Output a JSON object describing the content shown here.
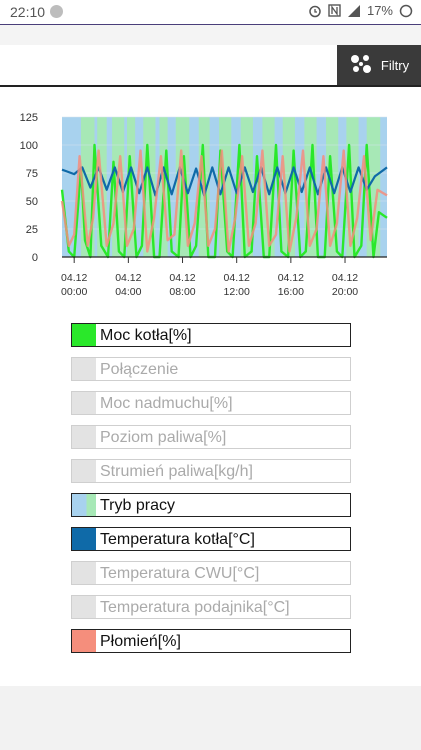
{
  "status": {
    "time": "22:10",
    "battery": "17%"
  },
  "header": {
    "filter_label": "Filtry"
  },
  "chart_data": {
    "type": "line",
    "yticks": [
      "0",
      "25",
      "50",
      "75",
      "100",
      "125"
    ],
    "ylim": [
      0,
      125
    ],
    "xticks": [
      {
        "date": "04.12",
        "time": "00:00"
      },
      {
        "date": "04.12",
        "time": "04:00"
      },
      {
        "date": "04.12",
        "time": "08:00"
      },
      {
        "date": "04.12",
        "time": "12:00"
      },
      {
        "date": "04.12",
        "time": "16:00"
      },
      {
        "date": "04.12",
        "time": "20:00"
      }
    ],
    "xlim_hours": [
      -0.9,
      23.1
    ],
    "mode_bands_hours": [
      [
        0.5,
        1.5
      ],
      [
        1.7,
        2.4
      ],
      [
        2.8,
        3.7
      ],
      [
        3.9,
        4.5
      ],
      [
        5.1,
        6.0
      ],
      [
        6.3,
        6.9
      ],
      [
        7.5,
        8.5
      ],
      [
        9.2,
        10.0
      ],
      [
        10.7,
        11.6
      ],
      [
        12.3,
        13.2
      ],
      [
        13.9,
        14.8
      ],
      [
        15.4,
        16.3
      ],
      [
        17.0,
        17.9
      ],
      [
        18.6,
        19.5
      ],
      [
        20.1,
        21.0
      ],
      [
        21.6,
        22.6
      ]
    ],
    "series": [
      {
        "name": "Moc kotła[%]",
        "color": "#2ae82a",
        "x": [
          -0.9,
          -0.4,
          0.0,
          0.5,
          0.8,
          1.2,
          1.5,
          2.0,
          2.5,
          2.9,
          3.3,
          3.7,
          4.1,
          4.6,
          5.0,
          5.4,
          5.9,
          6.3,
          6.8,
          7.2,
          7.7,
          8.1,
          8.6,
          9.0,
          9.5,
          9.9,
          10.4,
          10.8,
          11.3,
          11.7,
          12.2,
          12.6,
          13.1,
          13.5,
          14.0,
          14.4,
          14.9,
          15.3,
          15.8,
          16.2,
          16.7,
          17.1,
          17.6,
          18.0,
          18.5,
          18.9,
          19.4,
          19.8,
          20.3,
          20.7,
          21.2,
          21.6,
          22.1,
          22.5,
          23.1
        ],
        "y": [
          60,
          5,
          0,
          80,
          15,
          0,
          100,
          10,
          0,
          85,
          5,
          0,
          90,
          0,
          10,
          100,
          0,
          0,
          95,
          5,
          0,
          90,
          0,
          10,
          100,
          0,
          0,
          95,
          5,
          0,
          100,
          0,
          5,
          90,
          0,
          0,
          100,
          5,
          0,
          95,
          0,
          5,
          100,
          0,
          0,
          90,
          5,
          0,
          100,
          0,
          10,
          100,
          0,
          40,
          35
        ]
      },
      {
        "name": "Temperatura kotła[°C]",
        "color": "#0f6aa8",
        "x": [
          -0.9,
          0.0,
          0.6,
          1.2,
          1.8,
          2.4,
          3.0,
          3.6,
          4.2,
          4.8,
          5.4,
          6.0,
          6.6,
          7.2,
          7.8,
          8.4,
          9.0,
          9.6,
          10.2,
          10.8,
          11.4,
          12.0,
          12.6,
          13.2,
          13.8,
          14.4,
          15.0,
          15.6,
          16.2,
          16.8,
          17.4,
          18.0,
          18.6,
          19.2,
          19.8,
          20.4,
          21.0,
          21.6,
          22.2,
          23.1
        ],
        "y": [
          78,
          74,
          80,
          62,
          80,
          60,
          80,
          58,
          80,
          57,
          80,
          55,
          80,
          56,
          80,
          57,
          79,
          55,
          80,
          56,
          80,
          57,
          80,
          58,
          80,
          56,
          80,
          57,
          80,
          58,
          80,
          56,
          80,
          57,
          80,
          58,
          80,
          60,
          72,
          80
        ]
      },
      {
        "name": "Płomień[%]",
        "color": "#f58e7c",
        "x": [
          -0.9,
          -0.4,
          0.0,
          0.4,
          1.0,
          1.4,
          1.8,
          2.4,
          2.9,
          3.4,
          3.9,
          4.4,
          4.9,
          5.4,
          5.9,
          6.4,
          6.9,
          7.4,
          7.9,
          8.4,
          8.9,
          9.4,
          9.9,
          10.4,
          10.9,
          11.4,
          11.9,
          12.4,
          12.9,
          13.4,
          13.9,
          14.4,
          14.9,
          15.4,
          15.9,
          16.4,
          16.9,
          17.4,
          17.9,
          18.4,
          18.9,
          19.4,
          19.9,
          20.4,
          20.9,
          21.4,
          21.9,
          22.4,
          23.1
        ],
        "y": [
          50,
          10,
          20,
          90,
          10,
          35,
          95,
          10,
          30,
          90,
          10,
          25,
          95,
          5,
          35,
          90,
          15,
          20,
          95,
          10,
          30,
          90,
          10,
          25,
          95,
          5,
          35,
          90,
          10,
          30,
          95,
          10,
          20,
          90,
          5,
          35,
          95,
          10,
          25,
          90,
          10,
          30,
          95,
          10,
          35,
          90,
          15,
          60,
          55
        ]
      }
    ]
  },
  "legend": [
    {
      "label": "Moc kotła[%]",
      "active": true,
      "color": "#2ae82a"
    },
    {
      "label": "Połączenie",
      "active": false
    },
    {
      "label": "Moc nadmuchu[%]",
      "active": false
    },
    {
      "label": "Poziom paliwa[%]",
      "active": false
    },
    {
      "label": "Strumień paliwa[kg/h]",
      "active": false
    },
    {
      "label": "Tryb pracy",
      "active": true,
      "color": "#a8d2ee",
      "color2": "#a7e8b6"
    },
    {
      "label": "Temperatura kotła[°C]",
      "active": true,
      "color": "#0f6aa8"
    },
    {
      "label": "Temperatura CWU[°C]",
      "active": false
    },
    {
      "label": "Temperatura podajnika[°C]",
      "active": false
    },
    {
      "label": "Płomień[%]",
      "active": true,
      "color": "#f58e7c"
    }
  ]
}
